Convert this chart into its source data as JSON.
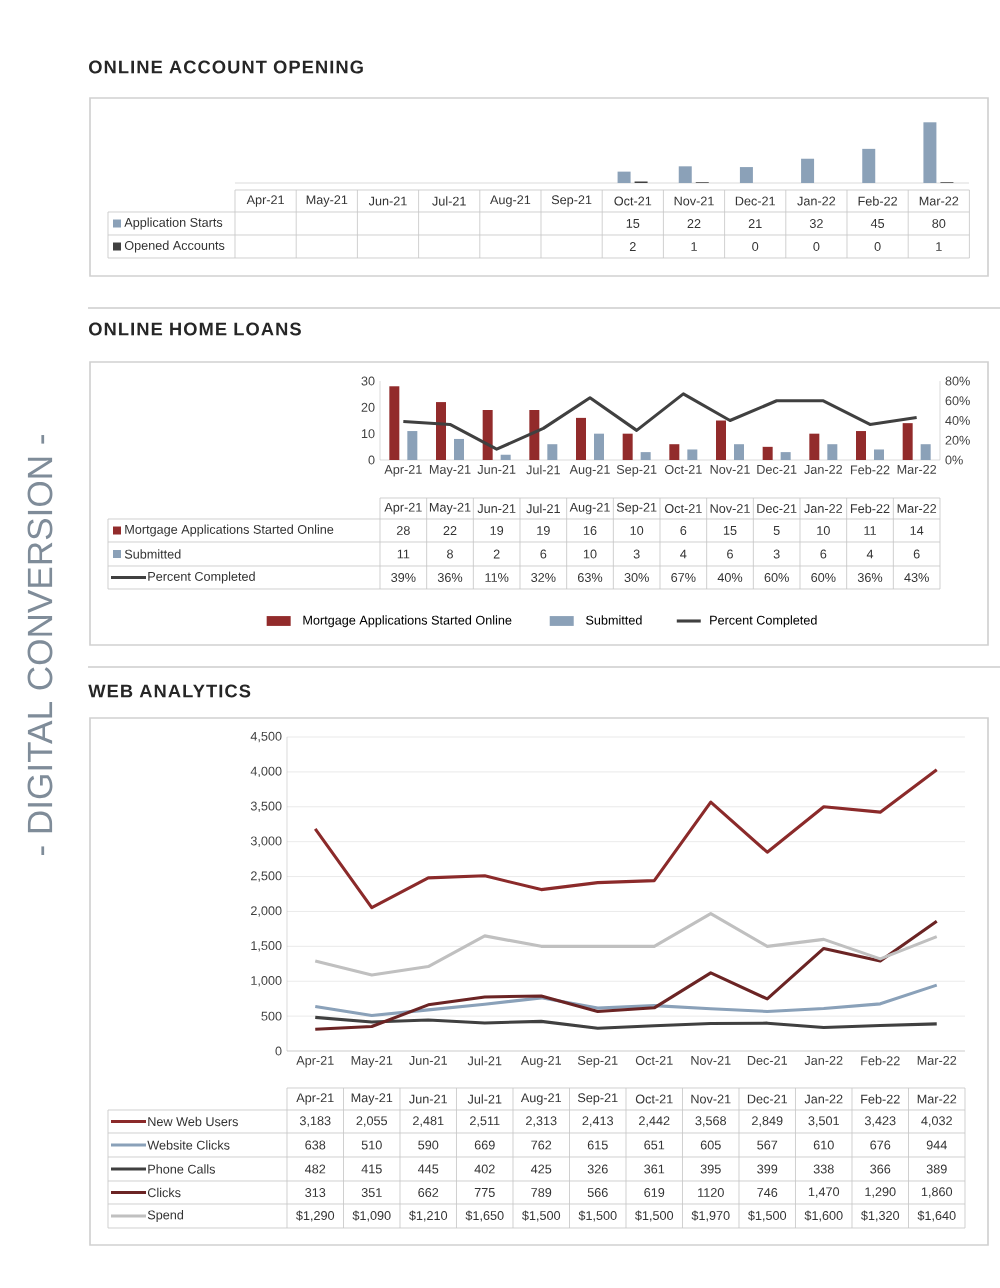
{
  "chart_data": [
    {
      "type": "bar",
      "title": "ONLINE ACCOUNT OPENING",
      "annotations": [
        "- DIGITAL CONVERSION -"
      ],
      "categories": [
        "Apr-21",
        "May-21",
        "Jun-21",
        "Jul-21",
        "Aug-21",
        "Sep-21",
        "Oct-21",
        "Nov-21",
        "Dec-21",
        "Jan-22",
        "Feb-22",
        "Mar-22"
      ],
      "series": [
        {
          "name": "Application Starts",
          "color": "#8ba1b8",
          "values": [
            null,
            null,
            null,
            null,
            null,
            null,
            15,
            22,
            21,
            32,
            45,
            80
          ]
        },
        {
          "name": "Opened Accounts",
          "color": "#404040",
          "values": [
            null,
            null,
            null,
            null,
            null,
            null,
            2,
            1,
            0,
            0,
            0,
            1
          ]
        }
      ],
      "data_labels": true,
      "tick_labels": "x",
      "legend": "left"
    },
    {
      "type": "bar",
      "title": "ONLINE HOME LOANS",
      "categories": [
        "Apr-21",
        "May-21",
        "Jun-21",
        "Jul-21",
        "Aug-21",
        "Sep-21",
        "Oct-21",
        "Nov-21",
        "Dec-21",
        "Jan-22",
        "Feb-22",
        "Mar-22"
      ],
      "series": [
        {
          "name": "Mortgage Applications Started Online",
          "color": "#922b2b",
          "values": [
            28,
            22,
            19,
            19,
            16,
            10,
            6,
            15,
            5,
            10,
            11,
            14
          ]
        },
        {
          "name": "Submitted",
          "color": "#8ba1b8",
          "values": [
            11,
            8,
            2,
            6,
            10,
            3,
            4,
            6,
            3,
            6,
            4,
            6
          ]
        },
        {
          "name": "Percent Completed",
          "type": "line",
          "axis": "y2",
          "color": "#404040",
          "values": [
            39,
            36,
            11,
            32,
            63,
            30,
            67,
            40,
            60,
            60,
            36,
            43
          ],
          "value_labels": [
            "39%",
            "36%",
            "11%",
            "32%",
            "63%",
            "30%",
            "67%",
            "40%",
            "60%",
            "60%",
            "36%",
            "43%"
          ]
        }
      ],
      "ylim": [
        0,
        30
      ],
      "yticks": [
        0,
        10,
        20,
        30
      ],
      "y2lim": [
        0,
        80
      ],
      "y2ticks": [
        {
          "value": 0,
          "label": "0%"
        },
        {
          "value": 20,
          "label": "20%"
        },
        {
          "value": 40,
          "label": "40%"
        },
        {
          "value": 60,
          "label": "60%"
        },
        {
          "value": 80,
          "label": "80%"
        }
      ],
      "data_labels": true,
      "legend": "bottom",
      "marker": "none"
    },
    {
      "type": "line",
      "title": "WEB ANALYTICS",
      "categories": [
        "Apr-21",
        "May-21",
        "Jun-21",
        "Jul-21",
        "Aug-21",
        "Sep-21",
        "Oct-21",
        "Nov-21",
        "Dec-21",
        "Jan-22",
        "Feb-22",
        "Mar-22"
      ],
      "series": [
        {
          "name": "New Web Users",
          "color": "#8b2a2a",
          "values": [
            3183,
            2055,
            2481,
            2511,
            2313,
            2413,
            2442,
            3568,
            2849,
            3501,
            3423,
            4032
          ],
          "value_labels": [
            "3,183",
            "2,055",
            "2,481",
            "2,511",
            "2,313",
            "2,413",
            "2,442",
            "3,568",
            "2,849",
            "3,501",
            "3,423",
            "4,032"
          ]
        },
        {
          "name": "Website Clicks",
          "color": "#8aa1b9",
          "values": [
            638,
            510,
            590,
            669,
            762,
            615,
            651,
            605,
            567,
            610,
            676,
            944
          ],
          "value_labels": [
            "638",
            "510",
            "590",
            "669",
            "762",
            "615",
            "651",
            "605",
            "567",
            "610",
            "676",
            "944"
          ]
        },
        {
          "name": "Phone Calls",
          "color": "#404040",
          "values": [
            482,
            415,
            445,
            402,
            425,
            326,
            361,
            395,
            399,
            338,
            366,
            389
          ],
          "value_labels": [
            "482",
            "415",
            "445",
            "402",
            "425",
            "326",
            "361",
            "395",
            "399",
            "338",
            "366",
            "389"
          ]
        },
        {
          "name": "Clicks",
          "color": "#6b2424",
          "values": [
            313,
            351,
            662,
            775,
            789,
            566,
            619,
            1120,
            746,
            1470,
            1290,
            1860
          ],
          "value_labels": [
            "313",
            "351",
            "662",
            "775",
            "789",
            "566",
            "619",
            "1120",
            "746",
            "1,470",
            "1,290",
            "1,860"
          ]
        },
        {
          "name": "Spend",
          "color": "#c0c0c0",
          "values": [
            1290,
            1090,
            1210,
            1650,
            1500,
            1500,
            1500,
            1970,
            1500,
            1600,
            1320,
            1640
          ],
          "value_labels": [
            "$1,290",
            "$1,090",
            "$1,210",
            "$1,650",
            "$1,500",
            "$1,500",
            "$1,500",
            "$1,970",
            "$1,500",
            "$1,600",
            "$1,320",
            "$1,640"
          ]
        }
      ],
      "ylim": [
        0,
        4500
      ],
      "yticks": [
        0,
        500,
        {
          "value": 1000,
          "label": "1,000"
        },
        {
          "value": 1500,
          "label": "1,500"
        },
        {
          "value": 2000,
          "label": "2,000"
        },
        {
          "value": 2500,
          "label": "2,500"
        },
        {
          "value": 3000,
          "label": "3,000"
        },
        {
          "value": 3500,
          "label": "3,500"
        },
        {
          "value": 4000,
          "label": "4,000"
        },
        {
          "value": 4500,
          "label": "4,500"
        }
      ],
      "grid": "y",
      "marker": "none",
      "legend": "left"
    }
  ]
}
